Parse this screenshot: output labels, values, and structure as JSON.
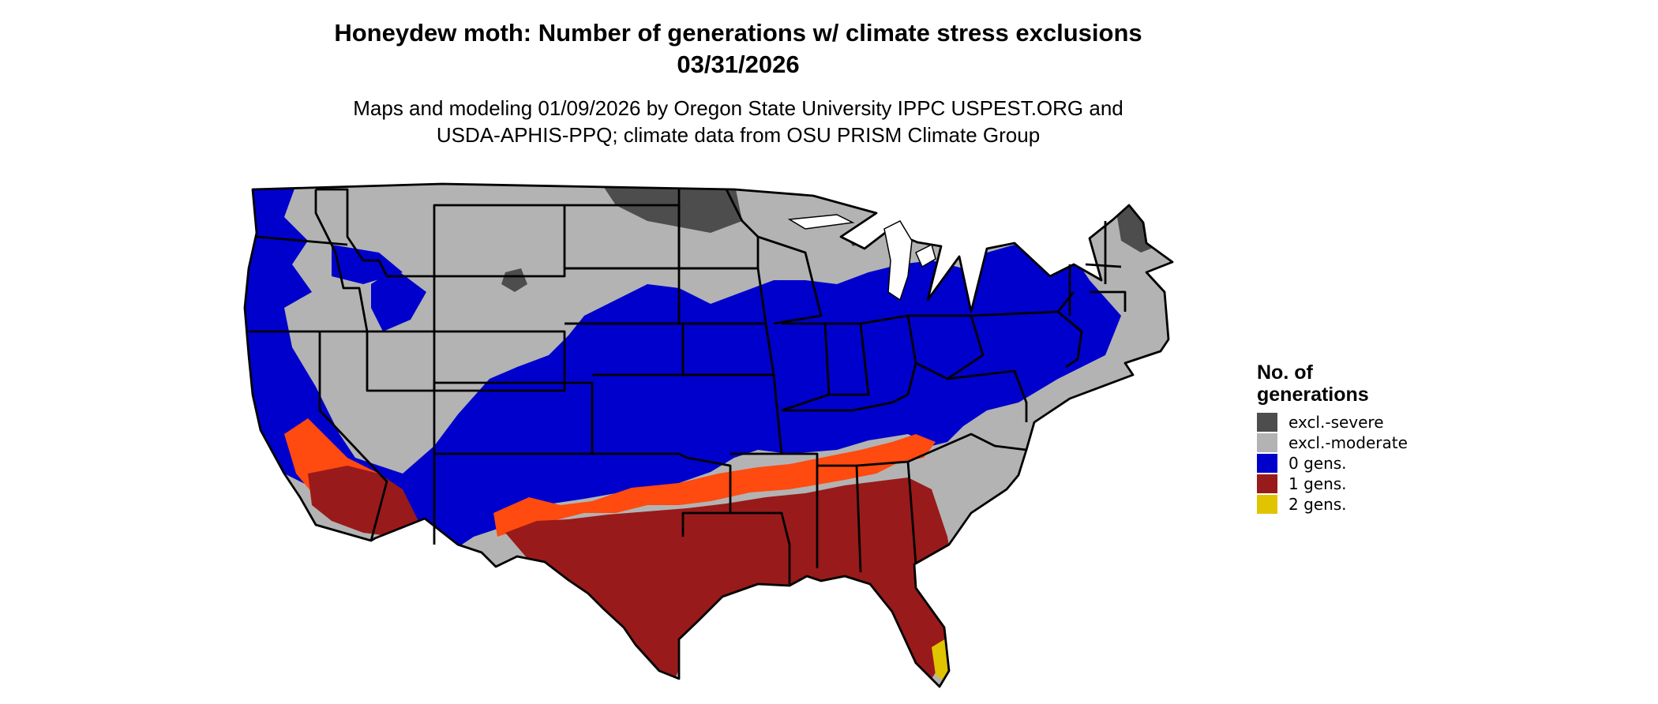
{
  "title": {
    "line1": "Honeydew moth: Number of generations w/ climate stress exclusions",
    "line2": "03/31/2026"
  },
  "subtitle": {
    "line1": "Maps and modeling 01/09/2026 by Oregon State University IPPC USPEST.ORG and",
    "line2": "USDA-APHIS-PPQ; climate data from OSU PRISM Climate Group"
  },
  "legend": {
    "title_line1": "No. of",
    "title_line2": "generations",
    "items": [
      {
        "label": "excl.-severe",
        "color": "#4d4d4d"
      },
      {
        "label": "excl.-moderate",
        "color": "#b3b3b3"
      },
      {
        "label": "0 gens.",
        "color": "#0000cc"
      },
      {
        "label": "1 gens.",
        "color": "#991a1a"
      },
      {
        "label": "2 gens.",
        "color": "#e0c400"
      }
    ]
  },
  "map": {
    "region": "contiguous United States",
    "boundary_color": "#000000",
    "classes": [
      "excl.-severe",
      "excl.-moderate",
      "0 gens.",
      "1 gens.",
      "2 gens."
    ]
  }
}
